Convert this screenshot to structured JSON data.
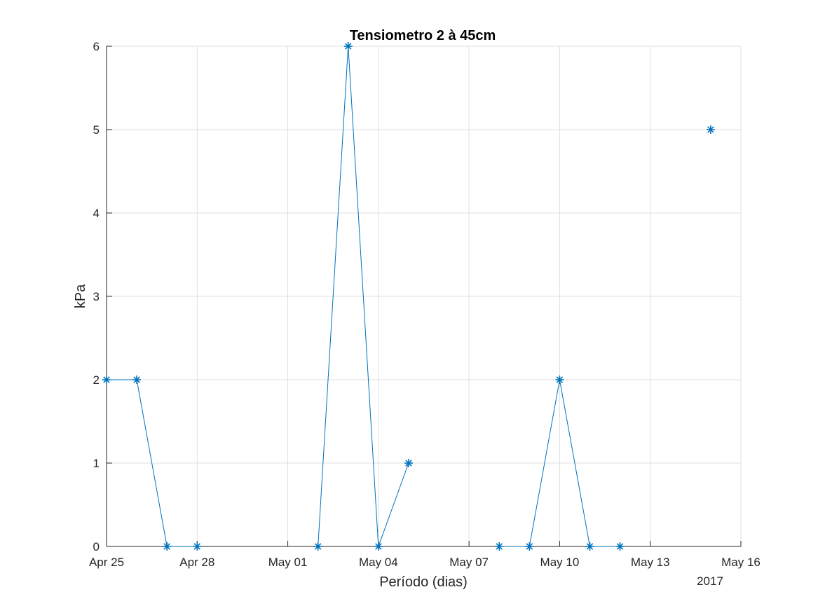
{
  "chart_data": {
    "type": "line",
    "title": "Tensiometro 2 à 45cm",
    "xlabel": "Período (dias)",
    "ylabel": "kPa",
    "year_label": "2017",
    "xlim": [
      "2017-04-25",
      "2017-05-16"
    ],
    "ylim": [
      0,
      6
    ],
    "x_ticks": [
      {
        "date": "2017-04-25",
        "label": "Apr 25"
      },
      {
        "date": "2017-04-28",
        "label": "Apr 28"
      },
      {
        "date": "2017-05-01",
        "label": "May 01"
      },
      {
        "date": "2017-05-04",
        "label": "May 04"
      },
      {
        "date": "2017-05-07",
        "label": "May 07"
      },
      {
        "date": "2017-05-10",
        "label": "May 10"
      },
      {
        "date": "2017-05-13",
        "label": "May 13"
      },
      {
        "date": "2017-05-16",
        "label": "May 16"
      }
    ],
    "y_ticks": [
      0,
      1,
      2,
      3,
      4,
      5,
      6
    ],
    "grid": true,
    "line_color": "#0072BD",
    "marker": "asterisk",
    "series": [
      {
        "segments": [
          [
            {
              "x": "2017-04-25",
              "y": 2
            },
            {
              "x": "2017-04-26",
              "y": 2
            },
            {
              "x": "2017-04-27",
              "y": 0
            },
            {
              "x": "2017-04-28",
              "y": 0
            }
          ],
          [
            {
              "x": "2017-05-02",
              "y": 0
            },
            {
              "x": "2017-05-03",
              "y": 6
            },
            {
              "x": "2017-05-04",
              "y": 0
            },
            {
              "x": "2017-05-05",
              "y": 1
            }
          ],
          [
            {
              "x": "2017-05-08",
              "y": 0
            },
            {
              "x": "2017-05-09",
              "y": 0
            },
            {
              "x": "2017-05-10",
              "y": 2
            },
            {
              "x": "2017-05-11",
              "y": 0
            },
            {
              "x": "2017-05-12",
              "y": 0
            }
          ],
          [
            {
              "x": "2017-05-15",
              "y": 5
            }
          ]
        ]
      }
    ]
  }
}
